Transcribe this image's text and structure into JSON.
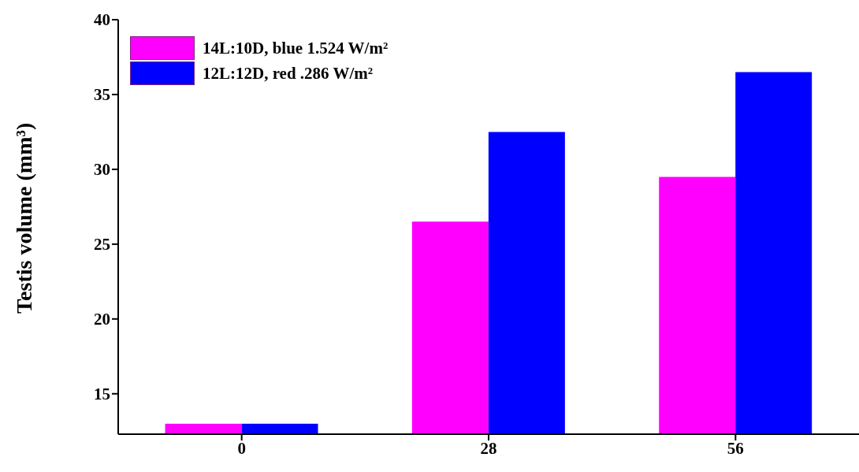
{
  "chart_data": {
    "type": "bar",
    "ylabel": "Testis volume (mm³)",
    "categories": [
      "0",
      "28",
      "56"
    ],
    "series": [
      {
        "name": "14L:10D, blue 1.524 W/m²",
        "color": "#ff00ff",
        "values": [
          13,
          26.5,
          29.5
        ]
      },
      {
        "name": "12L:12D, red .286 W/m²",
        "color": "#0000ff",
        "values": [
          13,
          32.5,
          36.5
        ]
      }
    ],
    "ylim": [
      12.3,
      40
    ],
    "yticks": [
      15,
      20,
      25,
      30,
      35,
      40
    ],
    "grid": false,
    "legend": "top left"
  }
}
